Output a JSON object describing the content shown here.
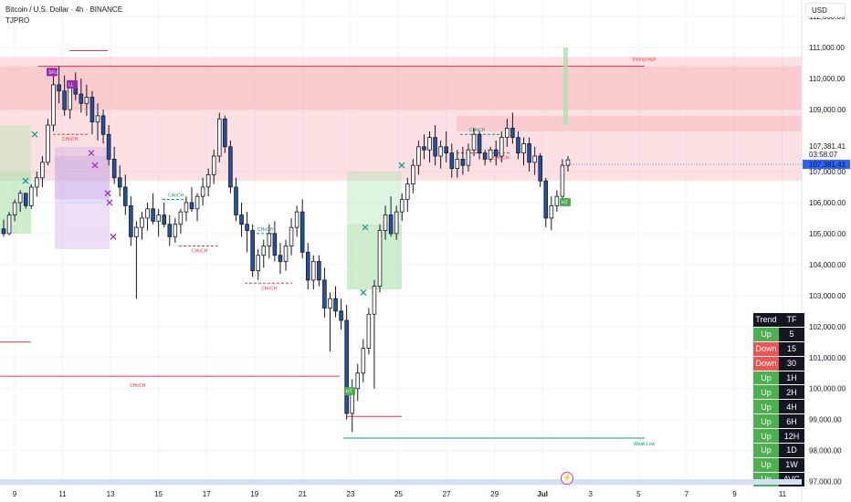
{
  "header": {
    "title": "Bitcoin / U.S. Dollar · 4h · BINANCE",
    "indicator": "TJPRO",
    "currency": "USD"
  },
  "price_scale": {
    "ticks": [
      "112,000.00",
      "111,000.00",
      "110,000.00",
      "109,000.00",
      "107,000.00",
      "106,000.00",
      "105,000.00",
      "104,000.00",
      "103,000.00",
      "102,000.00",
      "101,000.00",
      "100,000.00",
      "99,000.00",
      "98,000.00",
      "97,000.00"
    ],
    "tick_values": [
      112000,
      111000,
      110000,
      109000,
      107000,
      106000,
      105000,
      104000,
      103000,
      102000,
      101000,
      100000,
      99000,
      98000,
      97000
    ],
    "last_price": "107,381.41",
    "countdown": "03:58:07",
    "last_price_tag": "107,381.41",
    "last_price_value": 107381.41
  },
  "time_scale": {
    "ticks": [
      "9",
      "11",
      "13",
      "15",
      "17",
      "19",
      "21",
      "23",
      "25",
      "27",
      "29",
      "Jul",
      "3",
      "5",
      "7",
      "9",
      "11"
    ]
  },
  "colors": {
    "up": "#ffffff",
    "down": "#2451a6",
    "supply": "#f7a6ac",
    "demand": "#a6e3a8",
    "purple": "#c7a3e6",
    "choch_red": "#f23645",
    "choch_green": "#089981",
    "price_blue": "#2962ff"
  },
  "labels": {
    "strong_high": "Strong High",
    "weak_low": "Weak Low",
    "choch": "CHoCH",
    "bos_markers": [
      "SFU",
      "LL",
      "HT",
      "HT"
    ]
  },
  "tf_table": {
    "header_trend": "Trend",
    "header_tf": "TF",
    "rows": [
      {
        "trend": "Up",
        "tf": "5"
      },
      {
        "trend": "Down",
        "tf": "15"
      },
      {
        "trend": "Down",
        "tf": "30"
      },
      {
        "trend": "Up",
        "tf": "1H"
      },
      {
        "trend": "Up",
        "tf": "2H"
      },
      {
        "trend": "Up",
        "tf": "4H"
      },
      {
        "trend": "Up",
        "tf": "6H"
      },
      {
        "trend": "Up",
        "tf": "12H"
      },
      {
        "trend": "Up",
        "tf": "1D"
      },
      {
        "trend": "Up",
        "tf": "1W"
      },
      {
        "trend": "Up",
        "tf": "AVG"
      }
    ]
  },
  "chart_data": {
    "type": "candlestick",
    "symbol": "BTCUSD",
    "interval": "4h",
    "ylim": [
      96900,
      112300
    ],
    "candles": [
      [
        105150,
        105450,
        104900,
        105000
      ],
      [
        105000,
        105700,
        104950,
        105600
      ],
      [
        105600,
        106100,
        105400,
        106000
      ],
      [
        106000,
        106400,
        105700,
        106300
      ],
      [
        106300,
        106200,
        105800,
        105900
      ],
      [
        105900,
        106600,
        105800,
        106500
      ],
      [
        106500,
        107000,
        106200,
        106800
      ],
      [
        106800,
        107500,
        106500,
        107300
      ],
      [
        107300,
        108700,
        107200,
        108500
      ],
      [
        108500,
        110300,
        108300,
        109800
      ],
      [
        109800,
        110400,
        109200,
        109600
      ],
      [
        109600,
        110100,
        108800,
        109000
      ],
      [
        109000,
        109900,
        108700,
        109700
      ],
      [
        109700,
        110200,
        109300,
        109500
      ],
      [
        109500,
        110000,
        108900,
        109200
      ],
      [
        109200,
        109800,
        108800,
        109400
      ],
      [
        109400,
        109600,
        108200,
        108600
      ],
      [
        108600,
        109200,
        108000,
        108800
      ],
      [
        108800,
        109000,
        107900,
        108200
      ],
      [
        108200,
        108500,
        107200,
        107400
      ],
      [
        107400,
        107800,
        106600,
        106800
      ],
      [
        106800,
        107200,
        106200,
        106500
      ],
      [
        106500,
        106900,
        105600,
        105900
      ],
      [
        105900,
        106200,
        104600,
        104900
      ],
      [
        104900,
        105400,
        102900,
        105200
      ],
      [
        105200,
        105700,
        104800,
        105500
      ],
      [
        105500,
        106000,
        105100,
        105800
      ],
      [
        105800,
        106300,
        105300,
        105400
      ],
      [
        105400,
        105800,
        104900,
        105600
      ],
      [
        105600,
        106000,
        105200,
        105300
      ],
      [
        105300,
        105600,
        104600,
        104900
      ],
      [
        104900,
        105500,
        104700,
        105300
      ],
      [
        105300,
        105800,
        105000,
        105700
      ],
      [
        105700,
        106200,
        105400,
        106000
      ],
      [
        106000,
        106500,
        105700,
        105800
      ],
      [
        105800,
        106300,
        105400,
        106200
      ],
      [
        106200,
        106800,
        105900,
        106500
      ],
      [
        106500,
        107100,
        106200,
        106900
      ],
      [
        106900,
        107700,
        106600,
        107500
      ],
      [
        107500,
        108900,
        107300,
        108700
      ],
      [
        108700,
        108800,
        107600,
        107800
      ],
      [
        107800,
        108000,
        106300,
        106500
      ],
      [
        106500,
        106800,
        105400,
        105600
      ],
      [
        105600,
        106000,
        104900,
        105300
      ],
      [
        105300,
        105700,
        104400,
        105100
      ],
      [
        105100,
        105300,
        103600,
        103800
      ],
      [
        103800,
        104500,
        103500,
        104300
      ],
      [
        104300,
        104800,
        103900,
        104600
      ],
      [
        104600,
        105300,
        104200,
        105000
      ],
      [
        105000,
        105400,
        104100,
        104300
      ],
      [
        104300,
        104700,
        103700,
        104100
      ],
      [
        104100,
        104800,
        103800,
        104600
      ],
      [
        104600,
        105500,
        104300,
        105200
      ],
      [
        105200,
        105900,
        104900,
        105700
      ],
      [
        105700,
        106100,
        104200,
        104400
      ],
      [
        104400,
        104700,
        103200,
        103500
      ],
      [
        103500,
        104300,
        103200,
        104100
      ],
      [
        104100,
        104300,
        103300,
        103500
      ],
      [
        103500,
        103900,
        102300,
        102600
      ],
      [
        102600,
        103100,
        101200,
        102900
      ],
      [
        102900,
        103300,
        102300,
        102500
      ],
      [
        102500,
        102900,
        101900,
        102200
      ],
      [
        102200,
        102700,
        99000,
        99200
      ],
      [
        99200,
        100300,
        98600,
        100000
      ],
      [
        100000,
        100800,
        99600,
        100500
      ],
      [
        100500,
        101600,
        100200,
        101300
      ],
      [
        101300,
        102600,
        101100,
        102400
      ],
      [
        102400,
        103500,
        100000,
        103300
      ],
      [
        103300,
        105300,
        103100,
        105100
      ],
      [
        105100,
        105900,
        104800,
        105600
      ],
      [
        105600,
        106200,
        104900,
        105000
      ],
      [
        105000,
        105900,
        104800,
        105700
      ],
      [
        105700,
        106300,
        105400,
        106100
      ],
      [
        106100,
        106800,
        105700,
        106600
      ],
      [
        106600,
        107400,
        106300,
        107200
      ],
      [
        107200,
        108000,
        106900,
        107800
      ],
      [
        107800,
        108200,
        107400,
        107700
      ],
      [
        107700,
        108300,
        107300,
        108100
      ],
      [
        108100,
        108500,
        107200,
        107500
      ],
      [
        107500,
        108000,
        107100,
        107800
      ],
      [
        107800,
        108300,
        107300,
        107600
      ],
      [
        107600,
        107900,
        106800,
        107100
      ],
      [
        107100,
        107700,
        106800,
        107400
      ],
      [
        107400,
        107800,
        106900,
        107200
      ],
      [
        107200,
        107900,
        107000,
        107700
      ],
      [
        107700,
        108400,
        107500,
        108200
      ],
      [
        108200,
        108300,
        107400,
        107600
      ],
      [
        107600,
        107700,
        107200,
        107400
      ],
      [
        107400,
        107800,
        107300,
        107700
      ],
      [
        107700,
        108000,
        107200,
        107500
      ],
      [
        107500,
        108300,
        107300,
        108100
      ],
      [
        108100,
        108700,
        107800,
        108400
      ],
      [
        108400,
        108900,
        107900,
        108100
      ],
      [
        108100,
        108300,
        107400,
        107600
      ],
      [
        107600,
        108100,
        107200,
        107900
      ],
      [
        107900,
        108100,
        107000,
        107300
      ],
      [
        107300,
        107800,
        106900,
        107500
      ],
      [
        107500,
        107600,
        106500,
        106700
      ],
      [
        106700,
        106800,
        105200,
        105500
      ],
      [
        105500,
        106200,
        105100,
        105900
      ],
      [
        105900,
        106400,
        105700,
        106200
      ],
      [
        106200,
        107400,
        106000,
        107200
      ],
      [
        107200,
        107500,
        107000,
        107380
      ]
    ],
    "zones": [
      {
        "kind": "supply",
        "top": 110700,
        "bottom": 109000
      },
      {
        "kind": "supply",
        "top": 110400,
        "bottom": 109000
      },
      {
        "kind": "supply",
        "top": 109000,
        "bottom": 106700
      },
      {
        "kind": "supply",
        "top": 108800,
        "bottom": 108300
      },
      {
        "kind": "demand",
        "top": 108500,
        "bottom": 105000
      },
      {
        "kind": "demand",
        "top": 107000,
        "bottom": 105000
      },
      {
        "kind": "demand",
        "top": 107000,
        "bottom": 103200
      },
      {
        "kind": "demand",
        "top": 105300,
        "bottom": 103200
      },
      {
        "kind": "purple",
        "top": 107800,
        "bottom": 104500
      },
      {
        "kind": "purple",
        "top": 107500,
        "bottom": 106100
      }
    ],
    "levels": [
      {
        "name": "strong-high",
        "price": 110400
      },
      {
        "name": "weak-low",
        "price": 98400
      },
      {
        "name": "choch-left",
        "price": 100400
      },
      {
        "name": "red-high",
        "price": 110900
      },
      {
        "name": "red-low",
        "price": 101500
      },
      {
        "name": "red-mid",
        "price": 99100
      }
    ]
  }
}
